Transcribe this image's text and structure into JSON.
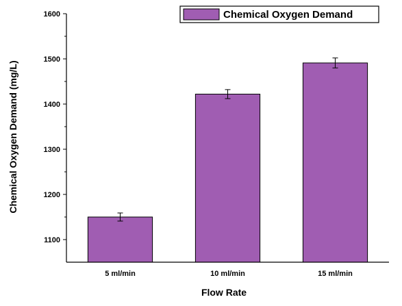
{
  "chart_data": {
    "type": "bar",
    "categories": [
      "5 ml/min",
      "10  ml/min",
      "15  ml/min"
    ],
    "series": [
      {
        "name": "Chemical Oxygen Demand",
        "values": [
          1150,
          1422,
          1491
        ],
        "error": [
          9,
          10,
          11
        ],
        "color": "#a05db2"
      }
    ],
    "xlabel": "Flow Rate",
    "ylabel": "Chemical Oxygen Demand (mg/L)",
    "ylim": [
      1050,
      1600
    ],
    "yticks": [
      1100,
      1200,
      1300,
      1400,
      1500,
      1600
    ],
    "grid": false,
    "legend_position": "top-right"
  }
}
